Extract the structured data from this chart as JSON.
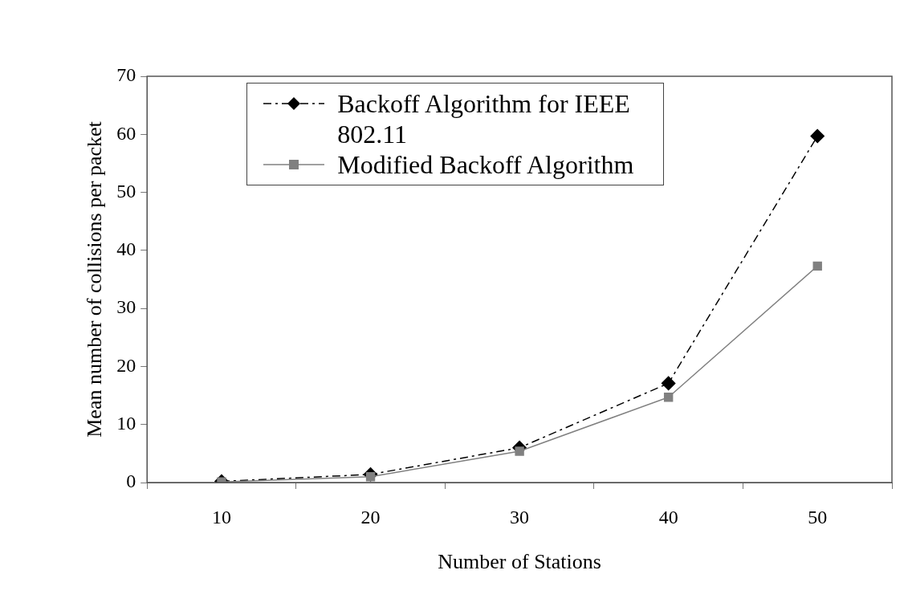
{
  "chart_data": {
    "type": "line",
    "xlabel": "Number of Stations",
    "ylabel": "Mean number of collisions per packet",
    "categories": [
      "10",
      "20",
      "30",
      "40",
      "50"
    ],
    "series": [
      {
        "name": "Backoff Algorithm for IEEE 802.11",
        "color": "#000000",
        "values": [
          0.2,
          1.4,
          6.0,
          17.1,
          59.7
        ],
        "marker": "diamond",
        "line_style": "dashed"
      },
      {
        "name": "Modified Backoff Algorithm",
        "color": "#808080",
        "values": [
          0.1,
          1.0,
          5.4,
          14.7,
          37.3
        ],
        "marker": "square",
        "line_style": "solid"
      }
    ],
    "ylim": [
      0,
      70
    ],
    "yticks": [
      0,
      10,
      20,
      30,
      40,
      50,
      60,
      70
    ],
    "grid": false,
    "legend": "top left"
  }
}
